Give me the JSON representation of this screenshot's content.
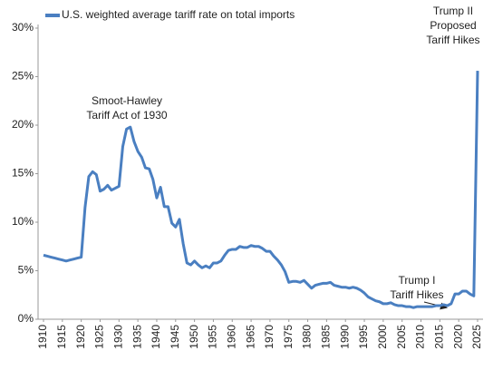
{
  "chart_data": {
    "type": "line",
    "annotations": [
      [
        "Smoot-Hawley",
        "Tariff Act of 1930"
      ],
      [
        "Trump II",
        "Proposed",
        "Tariff Hikes"
      ],
      [
        "Trump I",
        "Tariff Hikes"
      ]
    ],
    "x": [
      1910,
      1911,
      1912,
      1913,
      1914,
      1915,
      1916,
      1917,
      1918,
      1919,
      1920,
      1921,
      1922,
      1923,
      1924,
      1925,
      1926,
      1927,
      1928,
      1929,
      1930,
      1931,
      1932,
      1933,
      1934,
      1935,
      1936,
      1937,
      1938,
      1939,
      1940,
      1941,
      1942,
      1943,
      1944,
      1945,
      1946,
      1947,
      1948,
      1949,
      1950,
      1951,
      1952,
      1953,
      1954,
      1955,
      1956,
      1957,
      1958,
      1959,
      1960,
      1961,
      1962,
      1963,
      1964,
      1965,
      1966,
      1967,
      1968,
      1969,
      1970,
      1971,
      1972,
      1973,
      1974,
      1975,
      1976,
      1977,
      1978,
      1979,
      1980,
      1981,
      1982,
      1983,
      1984,
      1985,
      1986,
      1987,
      1988,
      1989,
      1990,
      1991,
      1992,
      1993,
      1994,
      1995,
      1996,
      1997,
      1998,
      1999,
      2000,
      2001,
      2002,
      2003,
      2004,
      2005,
      2006,
      2007,
      2008,
      2009,
      2010,
      2011,
      2012,
      2013,
      2014,
      2015,
      2016,
      2017,
      2018,
      2019,
      2020,
      2021,
      2022,
      2023,
      2024,
      2025
    ],
    "series": [
      {
        "name": "U.S. weighted average tariff rate on total imports",
        "color": "#4a7fc1",
        "values": [
          6.6,
          6.5,
          6.4,
          6.3,
          6.2,
          6.1,
          6.0,
          6.1,
          6.2,
          6.3,
          6.4,
          11.5,
          14.7,
          15.2,
          14.9,
          13.2,
          13.4,
          13.8,
          13.3,
          13.5,
          13.7,
          17.8,
          19.6,
          19.8,
          18.3,
          17.3,
          16.7,
          15.6,
          15.5,
          14.4,
          12.5,
          13.6,
          11.6,
          11.6,
          9.9,
          9.5,
          10.3,
          7.8,
          5.8,
          5.6,
          6.0,
          5.6,
          5.3,
          5.5,
          5.3,
          5.8,
          5.8,
          6.0,
          6.6,
          7.1,
          7.2,
          7.2,
          7.5,
          7.4,
          7.4,
          7.6,
          7.5,
          7.5,
          7.3,
          7.0,
          7.0,
          6.5,
          6.1,
          5.6,
          4.9,
          3.8,
          3.9,
          3.9,
          3.8,
          4.0,
          3.6,
          3.2,
          3.5,
          3.6,
          3.7,
          3.7,
          3.8,
          3.5,
          3.4,
          3.3,
          3.3,
          3.2,
          3.3,
          3.2,
          3.0,
          2.7,
          2.3,
          2.1,
          1.9,
          1.8,
          1.6,
          1.6,
          1.7,
          1.5,
          1.4,
          1.4,
          1.3,
          1.3,
          1.2,
          1.3,
          1.3,
          1.3,
          1.3,
          1.3,
          1.4,
          1.4,
          1.5,
          1.4,
          1.6,
          2.6,
          2.6,
          2.9,
          2.9,
          2.6,
          2.4,
          25.6
        ]
      }
    ],
    "xlim": [
      1910,
      2025
    ],
    "xticks": [
      1910,
      1915,
      1920,
      1925,
      1930,
      1935,
      1940,
      1945,
      1950,
      1955,
      1960,
      1965,
      1970,
      1975,
      1980,
      1985,
      1990,
      1995,
      2000,
      2005,
      2010,
      2015,
      2020,
      2025
    ],
    "ylim": [
      0,
      30
    ],
    "yticks": [
      {
        "value": 0,
        "label": "0%"
      },
      {
        "value": 5,
        "label": "5%"
      },
      {
        "value": 10,
        "label": "10%"
      },
      {
        "value": 15,
        "label": "15%"
      },
      {
        "value": 20,
        "label": "20%"
      },
      {
        "value": 25,
        "label": "25%"
      },
      {
        "value": 30,
        "label": "30%"
      }
    ],
    "grid": false,
    "legend": "top-left"
  }
}
